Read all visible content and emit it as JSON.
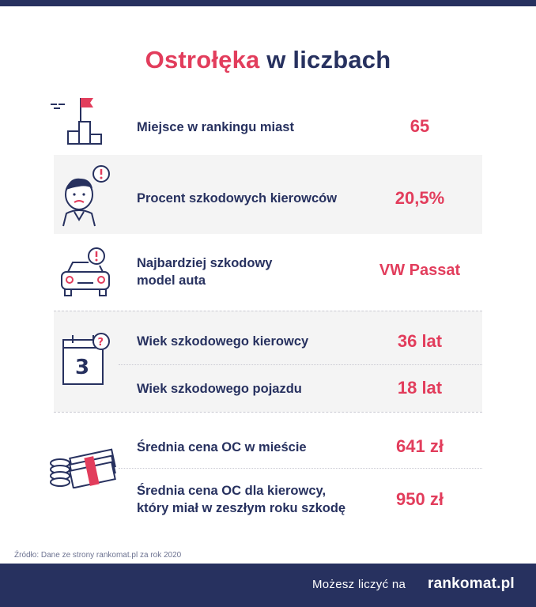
{
  "title": {
    "city": "Ostrołęka",
    "rest": "w liczbach"
  },
  "rows": [
    {
      "label": "Miejsce w rankingu miast",
      "value": "65",
      "icon": "podium-flag-icon"
    },
    {
      "label": "Procent szkodowych kierowców",
      "value": "20,5%",
      "icon": "driver-alert-icon"
    },
    {
      "label_line1": "Najbardziej szkodowy",
      "label_line2": "model auta",
      "value": "VW Passat",
      "icon": "car-alert-icon"
    },
    {
      "label": "Wiek szkodowego kierowcy",
      "value": "36 lat",
      "icon": "calendar-question-icon"
    },
    {
      "label": "Wiek szkodowego pojazdu",
      "value": "18 lat"
    },
    {
      "label": "Średnia cena OC w mieście",
      "value": "641 zł",
      "icon": "money-stack-icon"
    },
    {
      "label_line1": "Średnia cena OC dla kierowcy,",
      "label_line2": "który miał w zeszłym roku szkodę",
      "value": "950 zł"
    }
  ],
  "calendar_digit": "3",
  "source": "Źródło: Dane ze strony rankomat.pl za rok 2020",
  "footer": {
    "tagline": "Możesz liczyć na",
    "logo": "rankomat.pl"
  },
  "colors": {
    "navy": "#27315f",
    "accent": "#e23d5c",
    "row_bg": "#f4f4f4"
  }
}
